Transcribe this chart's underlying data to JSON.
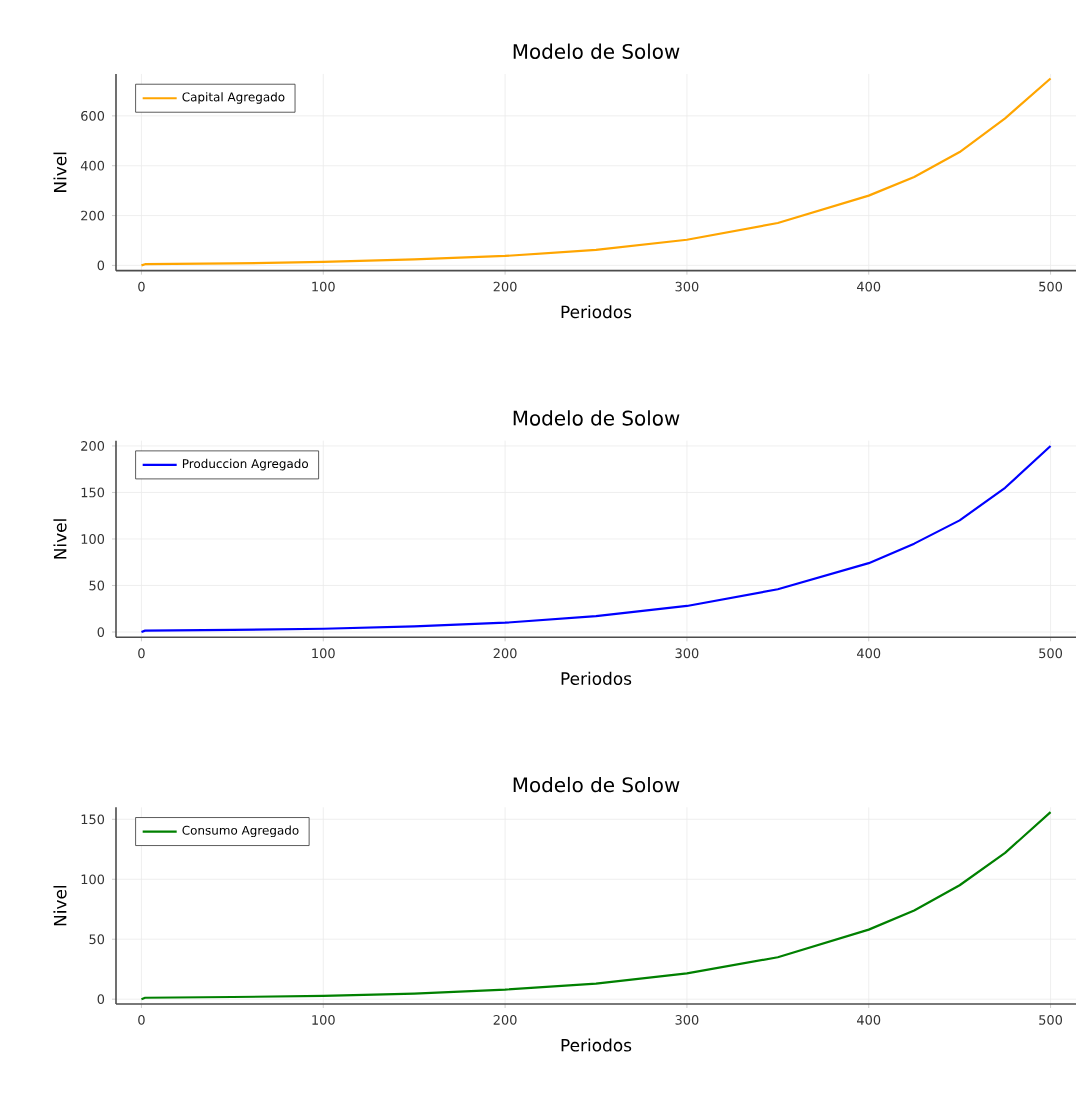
{
  "chart_data": [
    {
      "type": "line",
      "title": "Modelo de Solow",
      "xlabel": "Periodos",
      "ylabel": "Nivel",
      "xlim": [
        -14,
        514
      ],
      "ylim": [
        -21,
        768
      ],
      "xticks": [
        0,
        100,
        200,
        300,
        400,
        500
      ],
      "yticks": [
        0,
        200,
        400,
        600
      ],
      "grid": true,
      "legend": "top left",
      "series": [
        {
          "name": "Capital Agregado",
          "color": "#ffa500",
          "x": [
            0,
            2,
            50,
            100,
            150,
            200,
            250,
            300,
            350,
            400,
            425,
            450,
            475,
            500
          ],
          "values": [
            0,
            5,
            8,
            14,
            24,
            38,
            62,
            103,
            170,
            280,
            355,
            455,
            590,
            750
          ]
        }
      ]
    },
    {
      "type": "line",
      "title": "Modelo de Solow",
      "xlabel": "Periodos",
      "ylabel": "Nivel",
      "xlim": [
        -14,
        514
      ],
      "ylim": [
        -5.7,
        205.7
      ],
      "xticks": [
        0,
        100,
        200,
        300,
        400,
        500
      ],
      "yticks": [
        0,
        50,
        100,
        150,
        200
      ],
      "grid": true,
      "legend": "top left",
      "series": [
        {
          "name": "Produccion Agregado",
          "color": "#0000ff",
          "x": [
            0,
            2,
            50,
            100,
            150,
            200,
            250,
            300,
            350,
            400,
            425,
            450,
            475,
            500
          ],
          "values": [
            0,
            1.5,
            2.3,
            3.5,
            6,
            10,
            17,
            28,
            46,
            74,
            95,
            120,
            155,
            200
          ]
        }
      ]
    },
    {
      "type": "line",
      "title": "Modelo de Solow",
      "xlabel": "Periodos",
      "ylabel": "Nivel",
      "xlim": [
        -14,
        514
      ],
      "ylim": [
        -4,
        160
      ],
      "xticks": [
        0,
        100,
        200,
        300,
        400,
        500
      ],
      "yticks": [
        0,
        50,
        100,
        150
      ],
      "grid": true,
      "legend": "top left",
      "series": [
        {
          "name": "Consumo Agregado",
          "color": "#008000",
          "x": [
            0,
            2,
            50,
            100,
            150,
            200,
            250,
            300,
            350,
            400,
            425,
            450,
            475,
            500
          ],
          "values": [
            0,
            1.2,
            1.8,
            2.7,
            4.7,
            8,
            13,
            21.5,
            35,
            58,
            74,
            95,
            122,
            156
          ]
        }
      ]
    }
  ]
}
